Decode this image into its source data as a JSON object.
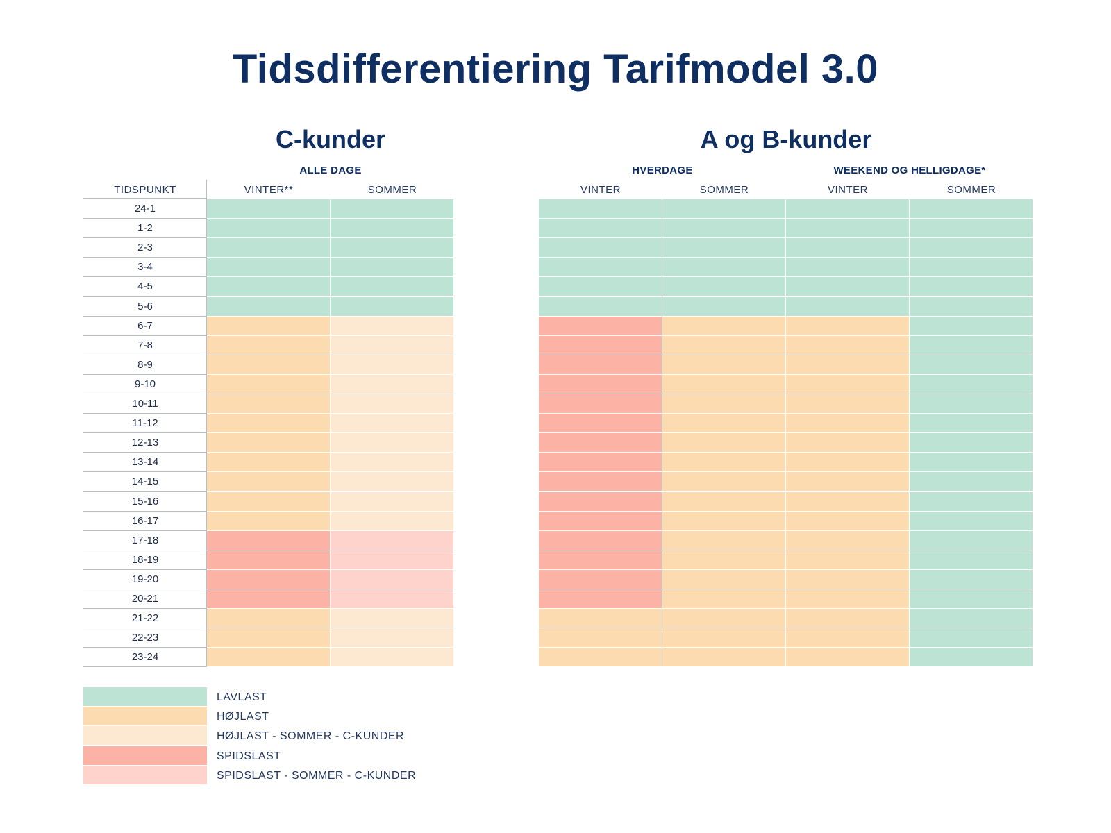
{
  "title": "Tidsdifferentiering Tarifmodel 3.0",
  "c_section": {
    "title": "C-kunder",
    "group": "ALLE DAGE",
    "time_header": "TIDSPUNKT",
    "columns": [
      "VINTER**",
      "SOMMER"
    ]
  },
  "ab_section": {
    "title": "A og B-kunder",
    "groups": [
      "HVERDAGE",
      "WEEKEND OG HELLIGDAGE*"
    ],
    "columns": [
      "VINTER",
      "SOMMER",
      "VINTER",
      "SOMMER"
    ]
  },
  "time_slots": [
    "24-1",
    "1-2",
    "2-3",
    "3-4",
    "4-5",
    "5-6",
    "6-7",
    "7-8",
    "8-9",
    "9-10",
    "10-11",
    "11-12",
    "12-13",
    "13-14",
    "14-15",
    "15-16",
    "16-17",
    "17-18",
    "18-19",
    "19-20",
    "20-21",
    "21-22",
    "22-23",
    "23-24"
  ],
  "colors": {
    "lav": "#bce3d3",
    "hoj": "#fddbb1",
    "hojs": "#fde9d1",
    "spids": "#fcb3a5",
    "spidss": "#fdd3cc",
    "title": "#0f2f63"
  },
  "grid": {
    "c_vinter": [
      "lav",
      "lav",
      "lav",
      "lav",
      "lav",
      "lav",
      "hoj",
      "hoj",
      "hoj",
      "hoj",
      "hoj",
      "hoj",
      "hoj",
      "hoj",
      "hoj",
      "hoj",
      "hoj",
      "spids",
      "spids",
      "spids",
      "spids",
      "hoj",
      "hoj",
      "hoj"
    ],
    "c_sommer": [
      "lav",
      "lav",
      "lav",
      "lav",
      "lav",
      "lav",
      "hojs",
      "hojs",
      "hojs",
      "hojs",
      "hojs",
      "hojs",
      "hojs",
      "hojs",
      "hojs",
      "hojs",
      "hojs",
      "spidss",
      "spidss",
      "spidss",
      "spidss",
      "hojs",
      "hojs",
      "hojs"
    ],
    "ab_hverdage_vinter": [
      "lav",
      "lav",
      "lav",
      "lav",
      "lav",
      "lav",
      "spids",
      "spids",
      "spids",
      "spids",
      "spids",
      "spids",
      "spids",
      "spids",
      "spids",
      "spids",
      "spids",
      "spids",
      "spids",
      "spids",
      "spids",
      "hoj",
      "hoj",
      "hoj"
    ],
    "ab_hverdage_sommer": [
      "lav",
      "lav",
      "lav",
      "lav",
      "lav",
      "lav",
      "hoj",
      "hoj",
      "hoj",
      "hoj",
      "hoj",
      "hoj",
      "hoj",
      "hoj",
      "hoj",
      "hoj",
      "hoj",
      "hoj",
      "hoj",
      "hoj",
      "hoj",
      "hoj",
      "hoj",
      "hoj"
    ],
    "ab_weekend_vinter": [
      "lav",
      "lav",
      "lav",
      "lav",
      "lav",
      "lav",
      "hoj",
      "hoj",
      "hoj",
      "hoj",
      "hoj",
      "hoj",
      "hoj",
      "hoj",
      "hoj",
      "hoj",
      "hoj",
      "hoj",
      "hoj",
      "hoj",
      "hoj",
      "hoj",
      "hoj",
      "hoj"
    ],
    "ab_weekend_sommer": [
      "lav",
      "lav",
      "lav",
      "lav",
      "lav",
      "lav",
      "lav",
      "lav",
      "lav",
      "lav",
      "lav",
      "lav",
      "lav",
      "lav",
      "lav",
      "lav",
      "lav",
      "lav",
      "lav",
      "lav",
      "lav",
      "lav",
      "lav",
      "lav"
    ]
  },
  "legend": [
    {
      "key": "lav",
      "label": "LAVLAST"
    },
    {
      "key": "hoj",
      "label": "HØJLAST"
    },
    {
      "key": "hojs",
      "label": "HØJLAST - SOMMER - C-KUNDER"
    },
    {
      "key": "spids",
      "label": "SPIDSLAST"
    },
    {
      "key": "spidss",
      "label": "SPIDSLAST - SOMMER - C-KUNDER"
    }
  ]
}
